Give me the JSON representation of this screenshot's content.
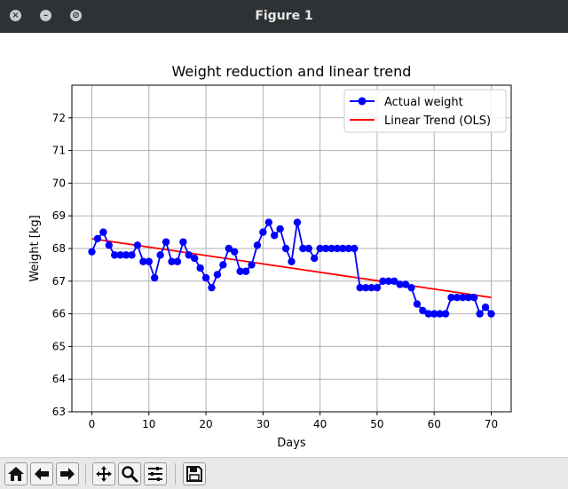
{
  "window": {
    "title": "Figure 1",
    "close_glyph": "×",
    "minimize_glyph": "–",
    "maximize_glyph": "⊘"
  },
  "toolbar": {
    "icons": [
      "home-icon",
      "back-arrow-icon",
      "forward-arrow-icon",
      "pan-icon",
      "zoom-icon",
      "subplots-icon",
      "save-icon"
    ]
  },
  "colors": {
    "actual": "#0000ff",
    "trend": "#ff0000",
    "titlebar": "#2f3234"
  },
  "chart_data": {
    "type": "line",
    "title": "Weight reduction and linear trend",
    "xlabel": "Days",
    "ylabel": "Weight [kg]",
    "xlim": [
      -3.5,
      73.5
    ],
    "ylim": [
      63,
      73
    ],
    "xticks": [
      0,
      10,
      20,
      30,
      40,
      50,
      60,
      70
    ],
    "yticks": [
      63,
      64,
      65,
      66,
      67,
      68,
      69,
      70,
      71,
      72
    ],
    "grid": true,
    "legend_position": "top-right",
    "series": [
      {
        "name": "Actual weight",
        "marker": "circle",
        "x": [
          0,
          1,
          2,
          3,
          4,
          5,
          6,
          7,
          8,
          9,
          10,
          11,
          12,
          13,
          14,
          15,
          16,
          17,
          18,
          19,
          20,
          21,
          22,
          23,
          24,
          25,
          26,
          27,
          28,
          29,
          30,
          31,
          32,
          33,
          34,
          35,
          36,
          37,
          38,
          39,
          40,
          41,
          42,
          43,
          44,
          45,
          46,
          47,
          48,
          49,
          50,
          51,
          52,
          53,
          54,
          55,
          56,
          57,
          58,
          59,
          60,
          61,
          62,
          63,
          64,
          65,
          66,
          67,
          68,
          69,
          70
        ],
        "values": [
          67.9,
          68.3,
          68.5,
          68.1,
          67.8,
          67.8,
          67.8,
          67.8,
          68.1,
          67.6,
          67.6,
          67.1,
          67.8,
          68.2,
          67.6,
          67.6,
          68.2,
          67.8,
          67.7,
          67.4,
          67.1,
          66.8,
          67.2,
          67.5,
          68.0,
          67.9,
          67.3,
          67.3,
          67.5,
          68.1,
          68.5,
          68.8,
          68.4,
          68.6,
          68.0,
          67.6,
          68.8,
          68.0,
          68.0,
          67.7,
          68.0,
          68.0,
          68.0,
          68.0,
          68.0,
          68.0,
          68.0,
          66.8,
          66.8,
          66.8,
          66.8,
          67.0,
          67.0,
          67.0,
          66.9,
          66.9,
          66.8,
          66.3,
          66.1,
          66.0,
          66.0,
          66.0,
          66.0,
          66.5,
          66.5,
          66.5,
          66.5,
          66.5,
          66.0,
          66.2,
          66.0
        ]
      },
      {
        "name": "Linear Trend (OLS)",
        "x": [
          0,
          70
        ],
        "values": [
          68.3,
          66.5
        ]
      }
    ]
  }
}
